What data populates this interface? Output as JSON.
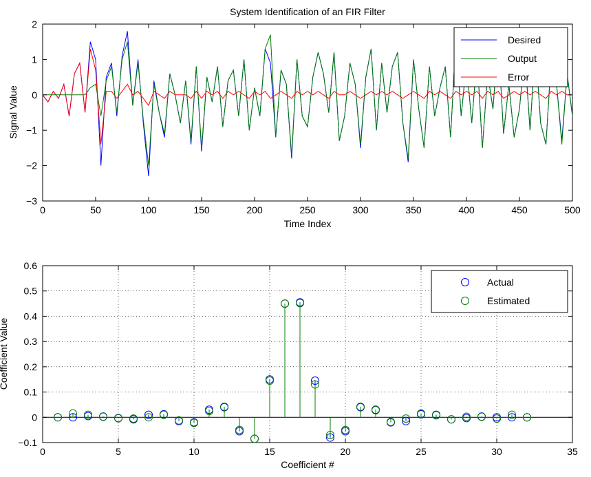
{
  "chart_data": [
    {
      "type": "line",
      "title": "System Identification of an FIR Filter",
      "xlabel": "Time Index",
      "ylabel": "Signal Value",
      "xlim": [
        0,
        500
      ],
      "ylim": [
        -3,
        2
      ],
      "xticks": [
        0,
        50,
        100,
        150,
        200,
        250,
        300,
        350,
        400,
        450,
        500
      ],
      "yticks": [
        -3,
        -2,
        -1,
        0,
        1,
        2
      ],
      "grid": false,
      "legend_position": "top-right",
      "x_sampled": [
        0,
        5,
        10,
        15,
        20,
        25,
        30,
        35,
        40,
        45,
        50,
        55,
        60,
        65,
        70,
        75,
        80,
        85,
        90,
        95,
        100,
        105,
        110,
        115,
        120,
        125,
        130,
        135,
        140,
        145,
        150,
        155,
        160,
        165,
        170,
        175,
        180,
        185,
        190,
        195,
        200,
        205,
        210,
        215,
        220,
        225,
        230,
        235,
        240,
        245,
        250,
        255,
        260,
        265,
        270,
        275,
        280,
        285,
        290,
        295,
        300,
        305,
        310,
        315,
        320,
        325,
        330,
        335,
        340,
        345,
        350,
        355,
        360,
        365,
        370,
        375,
        380,
        385,
        390,
        395,
        400,
        405,
        410,
        415,
        420,
        425,
        430,
        435,
        440,
        445,
        450,
        455,
        460,
        465,
        470,
        475,
        480,
        485,
        490,
        495,
        500
      ],
      "series": [
        {
          "name": "Desired",
          "color": "#0000ff",
          "values": [
            0,
            -0.2,
            0.1,
            -0.1,
            0.3,
            -0.6,
            0.6,
            0.9,
            -0.5,
            1.5,
            1.0,
            -2.0,
            0.5,
            0.9,
            -0.6,
            1.1,
            1.8,
            -0.3,
            1.0,
            -0.8,
            -2.3,
            0.4,
            -0.5,
            -1.2,
            0.6,
            0.0,
            -0.8,
            0.4,
            -1.4,
            0.8,
            -1.6,
            0.5,
            -0.2,
            0.8,
            -0.9,
            0.4,
            0.7,
            -0.6,
            1.0,
            -1.0,
            0.2,
            -0.6,
            1.3,
            0.9,
            -1.2,
            0.7,
            0.3,
            -1.8,
            1.0,
            -0.6,
            -0.9,
            0.5,
            1.2,
            0.6,
            -0.5,
            1.2,
            -1.3,
            -0.6,
            0.9,
            0.3,
            -1.5,
            0.5,
            1.3,
            -1.0,
            0.9,
            -0.5,
            0.8,
            1.2,
            -0.8,
            -1.9,
            1.0,
            -0.4,
            -1.5,
            0.8,
            -0.6,
            0.2,
            0.8,
            -1.2,
            1.6,
            -0.6,
            0.9,
            -0.8,
            1.1,
            -1.5,
            0.6,
            -0.4,
            1.6,
            -1.1,
            0.3,
            -1.2,
            -0.4,
            1.2,
            -1.0,
            1.4,
            -0.8,
            -1.4,
            1.0,
            0.3,
            -1.3,
            0.6,
            -0.6
          ]
        },
        {
          "name": "Output",
          "color": "#007f00",
          "values": [
            0,
            0,
            0,
            0,
            0,
            0,
            0,
            0,
            0,
            0.2,
            0.3,
            -0.6,
            0.4,
            0.8,
            -0.5,
            1.0,
            1.5,
            -0.3,
            0.9,
            -0.7,
            -2.0,
            0.3,
            -0.5,
            -1.1,
            0.6,
            0.0,
            -0.8,
            0.4,
            -1.3,
            0.8,
            -1.5,
            0.5,
            -0.2,
            0.8,
            -0.9,
            0.4,
            0.7,
            -0.6,
            1.0,
            -1.0,
            0.2,
            -0.6,
            1.3,
            1.7,
            -1.2,
            0.7,
            0.3,
            -1.7,
            1.0,
            -0.6,
            -0.9,
            0.5,
            1.2,
            0.6,
            -0.5,
            1.2,
            -1.3,
            -0.6,
            0.9,
            0.3,
            -1.4,
            0.5,
            1.3,
            -1.0,
            0.9,
            -0.5,
            0.8,
            1.2,
            -0.8,
            -1.8,
            1.0,
            -0.4,
            -1.5,
            0.8,
            -0.6,
            0.2,
            0.8,
            -1.2,
            1.6,
            -0.6,
            0.9,
            -0.8,
            1.1,
            -1.5,
            0.6,
            -0.4,
            1.6,
            -1.1,
            0.3,
            -1.2,
            -0.4,
            1.2,
            -1.0,
            1.4,
            -0.8,
            -1.4,
            1.0,
            0.3,
            -1.4,
            0.6,
            -0.6
          ]
        },
        {
          "name": "Error",
          "color": "#ff0000",
          "values": [
            0,
            -0.2,
            0.1,
            -0.1,
            0.3,
            -0.6,
            0.6,
            0.9,
            -0.5,
            1.3,
            0.7,
            -1.4,
            0.1,
            0.1,
            -0.1,
            0.1,
            0.3,
            0,
            0.1,
            -0.1,
            -0.3,
            0.1,
            0,
            -0.1,
            0.1,
            0,
            0,
            0,
            -0.1,
            0.1,
            -0.1,
            0.1,
            0,
            0.1,
            -0.1,
            0.1,
            0,
            0.1,
            0,
            -0.1,
            0.1,
            0,
            0.1,
            -0.1,
            0,
            0.1,
            0,
            -0.1,
            0.1,
            0,
            0.1,
            0,
            0.1,
            0,
            -0.1,
            0.1,
            0,
            0,
            0.1,
            0,
            -0.1,
            0,
            0.1,
            0,
            0.1,
            0,
            0.1,
            0,
            -0.1,
            0,
            0.1,
            0,
            -0.1,
            0.1,
            0,
            0.1,
            0,
            -0.1,
            0.1,
            0,
            0.1,
            0,
            0.1,
            -0.1,
            0.1,
            0,
            0.1,
            -0.1,
            0,
            0.1,
            0,
            0.1,
            0,
            0.1,
            0,
            -0.1,
            0.1,
            0,
            0.1,
            0,
            0
          ]
        }
      ]
    },
    {
      "type": "scatter",
      "title": "",
      "xlabel": "Coefficient #",
      "ylabel": "Coefficient Value",
      "xlim": [
        0,
        35
      ],
      "ylim": [
        -0.1,
        0.6
      ],
      "xticks": [
        0,
        5,
        10,
        15,
        20,
        25,
        30,
        35
      ],
      "yticks": [
        -0.1,
        0,
        0.1,
        0.2,
        0.3,
        0.4,
        0.5,
        0.6
      ],
      "grid": true,
      "legend_position": "top-right",
      "style": "stem",
      "x": [
        1,
        2,
        3,
        4,
        5,
        6,
        7,
        8,
        9,
        10,
        11,
        12,
        13,
        14,
        15,
        16,
        17,
        18,
        19,
        20,
        21,
        22,
        23,
        24,
        25,
        26,
        27,
        28,
        29,
        30,
        31,
        32
      ],
      "series": [
        {
          "name": "Actual",
          "color": "#0000ff",
          "values": [
            0.0,
            0.0,
            0.005,
            0.003,
            -0.003,
            -0.008,
            0.01,
            0.012,
            -0.015,
            -0.02,
            0.03,
            0.04,
            -0.055,
            -0.085,
            0.15,
            0.45,
            0.455,
            0.145,
            -0.08,
            -0.055,
            0.04,
            0.03,
            -0.02,
            -0.015,
            0.012,
            0.01,
            -0.008,
            -0.003,
            0.003,
            0.0,
            0.0,
            0.0
          ]
        },
        {
          "name": "Estimated",
          "color": "#007f00",
          "values": [
            0.0,
            0.015,
            0.01,
            0.002,
            -0.004,
            -0.005,
            0.0,
            0.01,
            -0.012,
            -0.022,
            0.025,
            0.042,
            -0.05,
            -0.085,
            0.145,
            0.45,
            0.452,
            0.13,
            -0.07,
            -0.05,
            0.042,
            0.028,
            -0.018,
            -0.005,
            0.015,
            0.008,
            -0.008,
            0.002,
            0.002,
            -0.005,
            0.01,
            0.0
          ]
        }
      ]
    }
  ]
}
